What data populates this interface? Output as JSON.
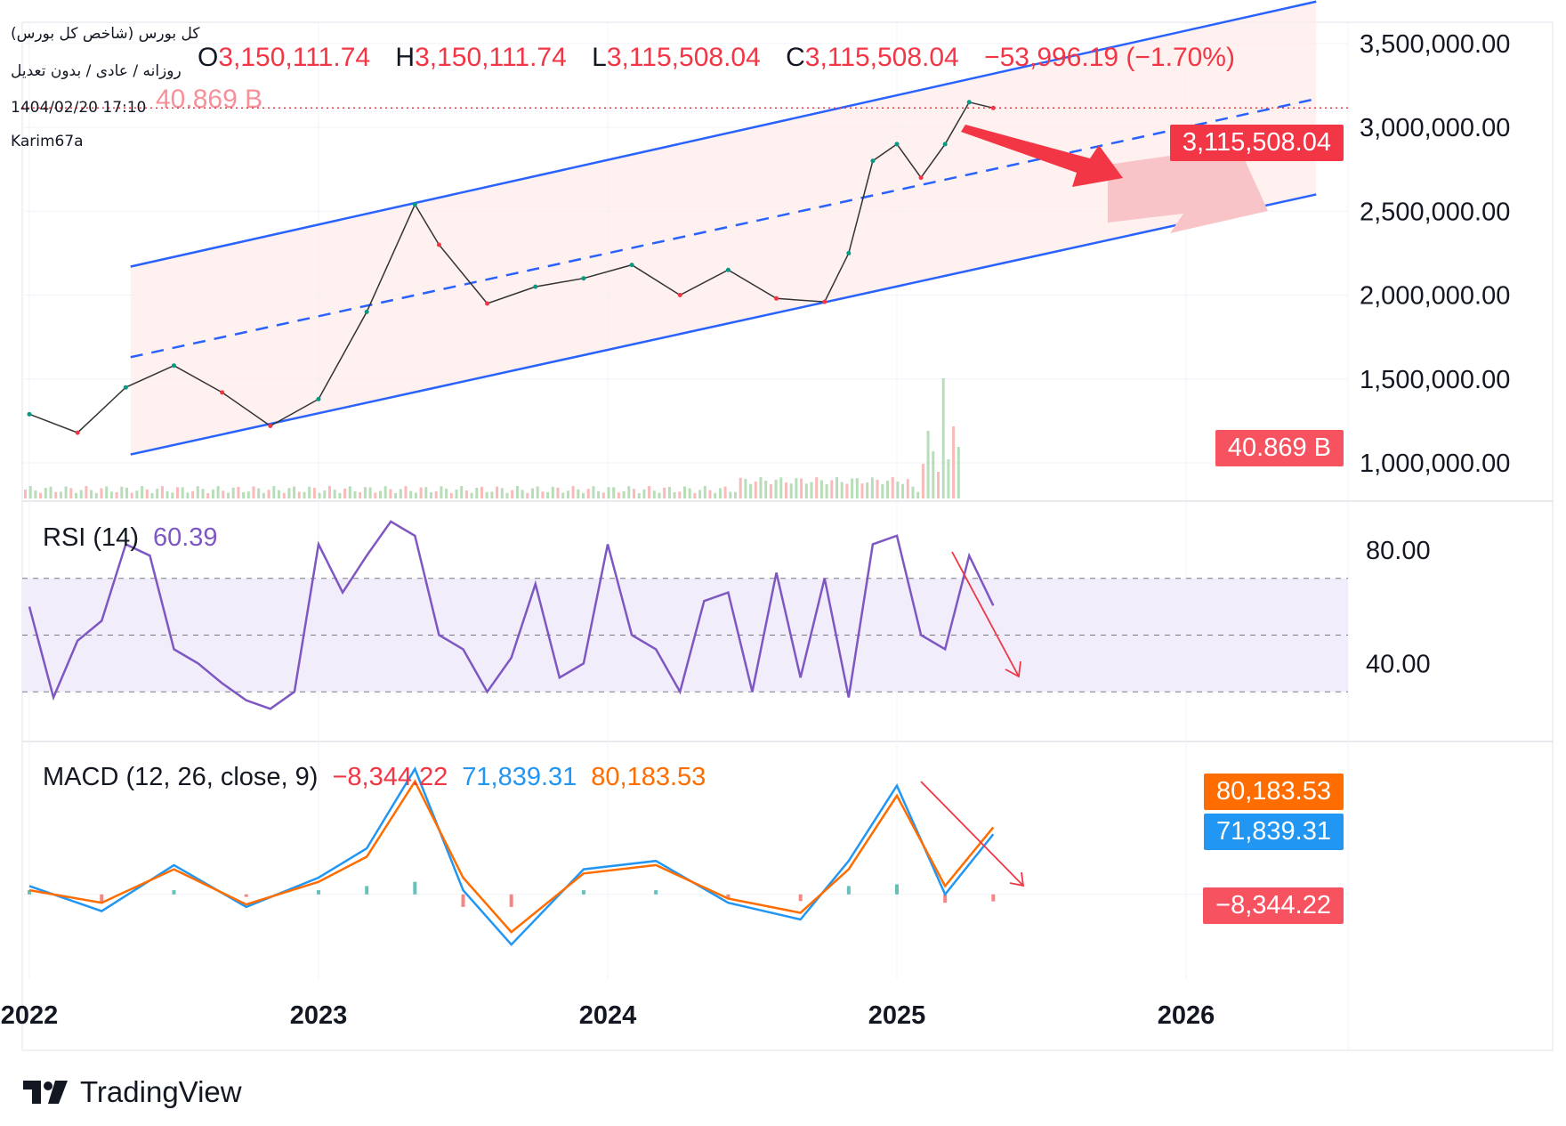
{
  "header": {
    "symbol_title": "کل بورس (شاخص کل بورس)",
    "interval_line": "روزانه / عادی / بدون تعدیل",
    "timestamp": "1404/02/20 17:10",
    "author": "Karim67a"
  },
  "ohlc": {
    "open_key": "O",
    "open": "3,150,111.74",
    "high_key": "H",
    "high": "3,150,111.74",
    "low_key": "L",
    "low": "3,115,508.04",
    "close_key": "C",
    "close": "3,115,508.04",
    "change": "−53,996.19 (−1.70%)"
  },
  "volume_legend": "40.869 B",
  "rsi": {
    "title": "RSI (14)",
    "value": "60.39"
  },
  "macd": {
    "title": "MACD (12, 26, close, 9)",
    "hist": "−8,344.22",
    "macd": "71,839.31",
    "signal": "80,183.53"
  },
  "tags": {
    "last_price": "3,115,508.04",
    "volume": "40.869 B",
    "macd_signal": "80,183.53",
    "macd_line": "71,839.31",
    "macd_hist": "−8,344.22"
  },
  "brand": "TradingView",
  "colors": {
    "down": "#f23645",
    "up": "#089981",
    "channel": "#2962ff",
    "channel_fill": "#fdecea",
    "rsi_line": "#7e57c2",
    "rsi_band": "#f1edfb",
    "macd_line": "#2196f3",
    "signal_line": "#ff6d00",
    "annotation_arrow": "#f23645",
    "annotation_arrow_light": "#f9c4c7"
  },
  "chart_data": [
    {
      "type": "line",
      "title": "",
      "y_axis_ticks": [
        "1,000,000.00",
        "1,500,000.00",
        "2,000,000.00",
        "2,500,000.00",
        "3,000,000.00",
        "3,500,000.00"
      ],
      "x_axis_ticks": [
        "2022",
        "2023",
        "2024",
        "2025",
        "2026"
      ],
      "ylim": [
        1000000,
        3600000
      ],
      "series": [
        {
          "x": [
            "2022-01",
            "2022-03",
            "2022-05",
            "2022-07",
            "2022-09",
            "2022-11",
            "2023-01",
            "2023-03",
            "2023-05",
            "2023-06",
            "2023-08",
            "2023-10",
            "2023-12",
            "2024-02",
            "2024-04",
            "2024-06",
            "2024-08",
            "2024-10",
            "2024-11",
            "2024-12",
            "2025-01",
            "2025-02",
            "2025-03",
            "2025-04",
            "2025-05"
          ],
          "values": [
            1290000,
            1180000,
            1450000,
            1580000,
            1420000,
            1220000,
            1380000,
            1900000,
            2540000,
            2300000,
            1950000,
            2050000,
            2100000,
            2180000,
            2000000,
            2150000,
            1980000,
            1960000,
            2250000,
            2800000,
            2900000,
            2700000,
            2900000,
            3150000,
            3115508
          ]
        }
      ],
      "channel": {
        "upper": [
          [
            2022.35,
            2170000
          ],
          [
            2026.45,
            3750000
          ]
        ],
        "middle": [
          [
            2022.35,
            1630000
          ],
          [
            2026.45,
            3170000
          ]
        ],
        "lower": [
          [
            2022.35,
            1050000
          ],
          [
            2026.45,
            2600000
          ]
        ]
      }
    },
    {
      "type": "line",
      "title": "RSI (14)",
      "y_axis_ticks": [
        "40.00",
        "80.00"
      ],
      "bands": [
        30,
        50,
        70
      ],
      "ylim": [
        15,
        95
      ],
      "series": [
        {
          "x": [
            "2022-01",
            "2022-02",
            "2022-03",
            "2022-04",
            "2022-05",
            "2022-06",
            "2022-07",
            "2022-08",
            "2022-09",
            "2022-10",
            "2022-11",
            "2022-12",
            "2023-01",
            "2023-02",
            "2023-03",
            "2023-04",
            "2023-05",
            "2023-06",
            "2023-07",
            "2023-08",
            "2023-09",
            "2023-10",
            "2023-11",
            "2023-12",
            "2024-01",
            "2024-02",
            "2024-03",
            "2024-04",
            "2024-05",
            "2024-06",
            "2024-07",
            "2024-08",
            "2024-09",
            "2024-10",
            "2024-11",
            "2024-12",
            "2025-01",
            "2025-02",
            "2025-03",
            "2025-04",
            "2025-05"
          ],
          "values": [
            60,
            28,
            48,
            55,
            82,
            78,
            45,
            40,
            33,
            27,
            24,
            30,
            82,
            65,
            78,
            90,
            85,
            50,
            45,
            30,
            42,
            68,
            35,
            40,
            82,
            50,
            45,
            30,
            62,
            65,
            30,
            72,
            35,
            70,
            28,
            82,
            85,
            50,
            45,
            78,
            60.39
          ]
        }
      ]
    },
    {
      "type": "line",
      "title": "MACD (12, 26, close, 9)",
      "ylim": [
        -80000,
        170000
      ],
      "series": [
        {
          "name": "MACD",
          "x": [
            "2022-01",
            "2022-04",
            "2022-07",
            "2022-10",
            "2023-01",
            "2023-03",
            "2023-05",
            "2023-07",
            "2023-09",
            "2023-12",
            "2024-03",
            "2024-06",
            "2024-09",
            "2024-11",
            "2025-01",
            "2025-03",
            "2025-05"
          ],
          "values": [
            10000,
            -20000,
            35000,
            -15000,
            20000,
            55000,
            150000,
            5000,
            -60000,
            30000,
            40000,
            -10000,
            -30000,
            40000,
            130000,
            0,
            71839.31
          ]
        },
        {
          "name": "Signal",
          "x": [
            "2022-01",
            "2022-04",
            "2022-07",
            "2022-10",
            "2023-01",
            "2023-03",
            "2023-05",
            "2023-07",
            "2023-09",
            "2023-12",
            "2024-03",
            "2024-06",
            "2024-09",
            "2024-11",
            "2025-01",
            "2025-03",
            "2025-05"
          ],
          "values": [
            5000,
            -10000,
            30000,
            -12000,
            15000,
            45000,
            135000,
            20000,
            -45000,
            25000,
            35000,
            -5000,
            -22000,
            30000,
            118000,
            10000,
            80183.53
          ]
        },
        {
          "name": "Histogram",
          "x": [
            "2022-01",
            "2022-04",
            "2022-07",
            "2022-10",
            "2023-01",
            "2023-03",
            "2023-05",
            "2023-07",
            "2023-09",
            "2023-12",
            "2024-03",
            "2024-06",
            "2024-09",
            "2024-11",
            "2025-01",
            "2025-03",
            "2025-05"
          ],
          "values": [
            5000,
            -10000,
            5000,
            -3000,
            5000,
            10000,
            15000,
            -15000,
            -15000,
            5000,
            5000,
            -5000,
            -8000,
            10000,
            12000,
            -10000,
            -8344.22
          ]
        }
      ]
    }
  ]
}
